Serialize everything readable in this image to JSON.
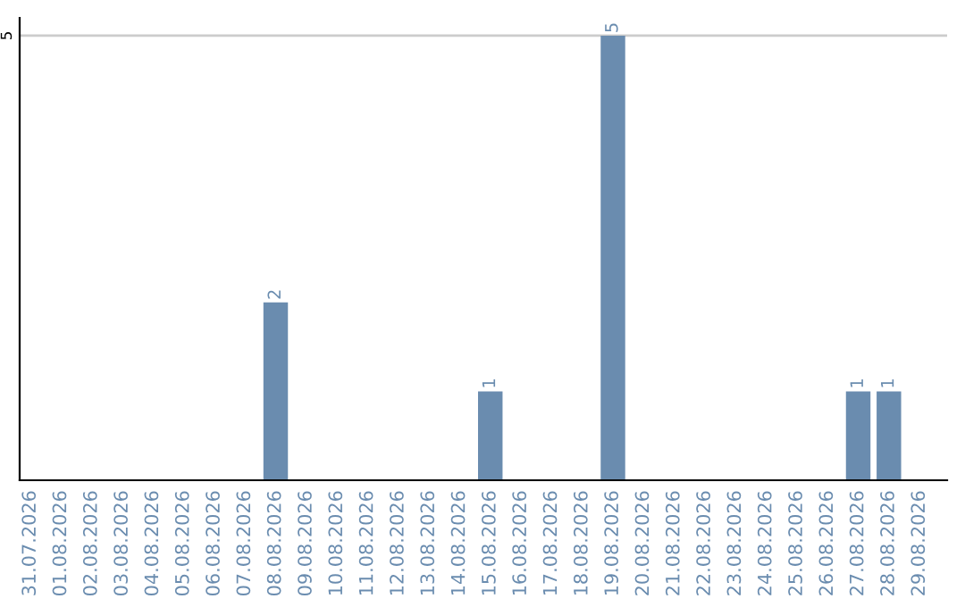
{
  "chart_data": {
    "type": "bar",
    "categories": [
      "31.07.2026",
      "01.08.2026",
      "02.08.2026",
      "03.08.2026",
      "04.08.2026",
      "05.08.2026",
      "06.08.2026",
      "07.08.2026",
      "08.08.2026",
      "09.08.2026",
      "10.08.2026",
      "11.08.2026",
      "12.08.2026",
      "13.08.2026",
      "14.08.2026",
      "15.08.2026",
      "16.08.2026",
      "17.08.2026",
      "18.08.2026",
      "19.08.2026",
      "20.08.2026",
      "21.08.2026",
      "22.08.2026",
      "23.08.2026",
      "24.08.2026",
      "25.08.2026",
      "26.08.2026",
      "27.08.2026",
      "28.08.2026",
      "29.08.2026"
    ],
    "values": [
      0,
      0,
      0,
      0,
      0,
      0,
      0,
      0,
      2,
      0,
      0,
      0,
      0,
      0,
      0,
      1,
      0,
      0,
      0,
      5,
      0,
      0,
      0,
      0,
      0,
      0,
      0,
      1,
      1,
      0
    ],
    "value_labels": [
      null,
      null,
      null,
      null,
      null,
      null,
      null,
      null,
      "2",
      null,
      null,
      null,
      null,
      null,
      null,
      "1",
      null,
      null,
      null,
      "5",
      null,
      null,
      null,
      null,
      null,
      null,
      null,
      "1",
      "1",
      null
    ],
    "color": "#6a8caf",
    "ylim": [
      0,
      5.2
    ],
    "yticks": [
      5
    ],
    "grid": "y"
  }
}
